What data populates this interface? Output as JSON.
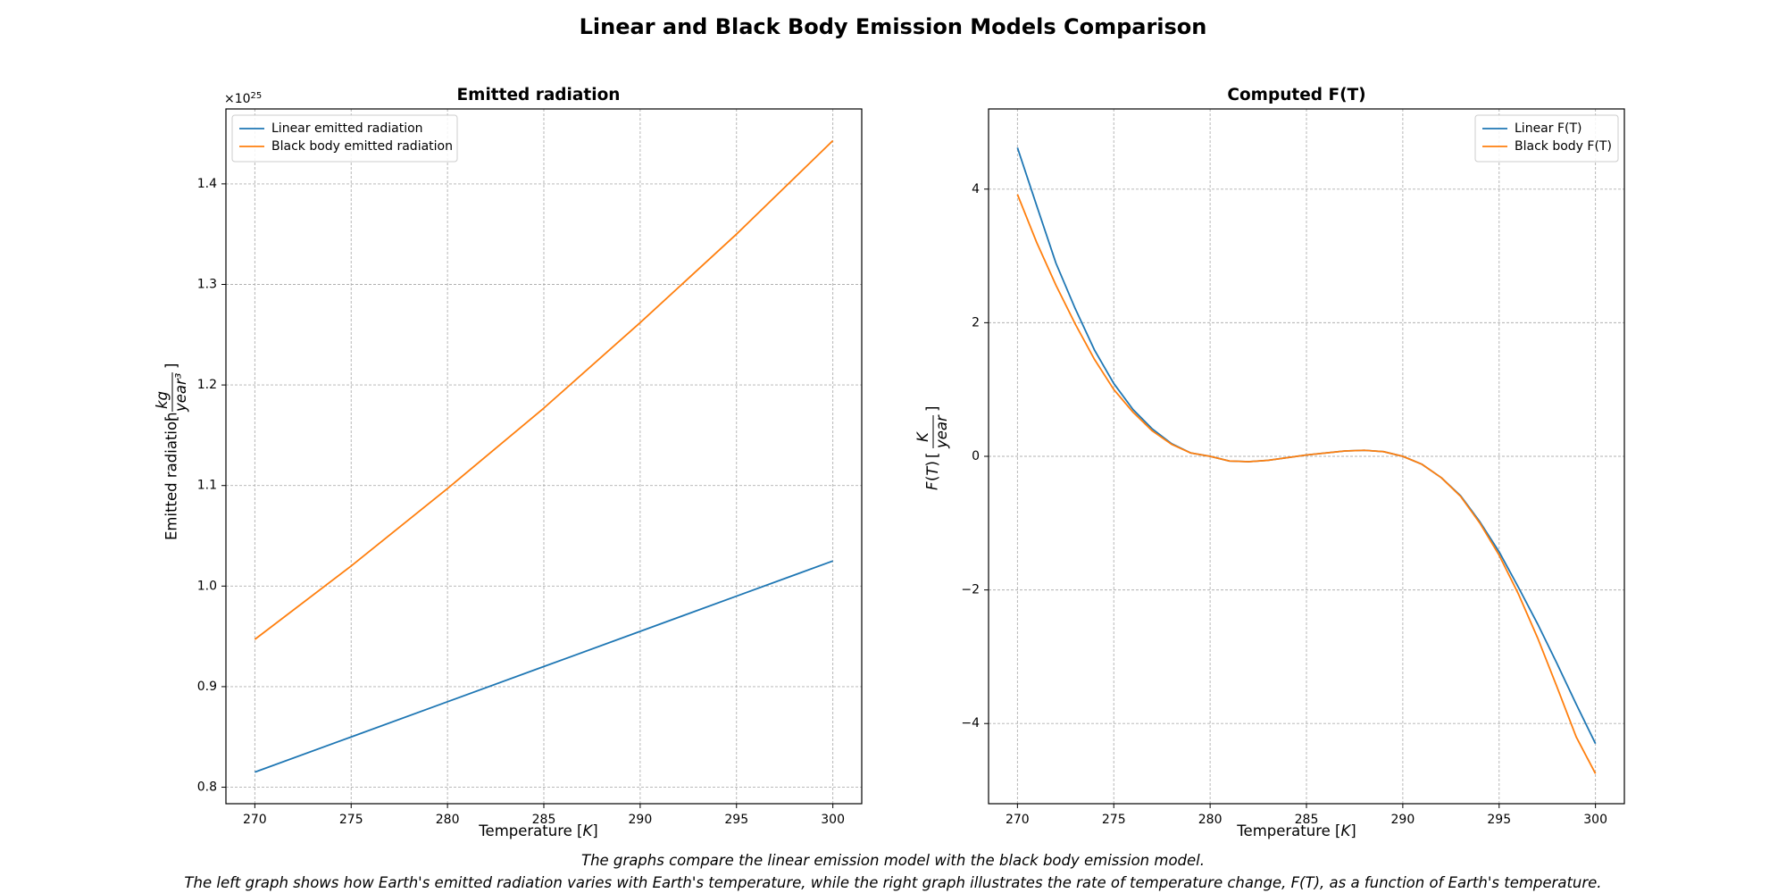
{
  "figure": {
    "title": "Linear and Black Body Emission Models Comparison",
    "caption_line1": "The graphs compare the linear emission model with the black body emission model.",
    "caption_line2": "The left graph shows how Earth's emitted radiation varies with Earth's temperature, while the right graph illustrates the rate of temperature change, F(T), as a function of Earth's temperature."
  },
  "chart_data": [
    {
      "type": "line",
      "title": "Emitted radiation",
      "xlabel": "Temperature [K]",
      "ylabel": "Emitted radiation [kg/year³]",
      "y_offset_text": "×10^25",
      "xlim": [
        268.5,
        301.5
      ],
      "ylim": [
        0.7836,
        1.4745
      ],
      "x_ticks": [
        270,
        275,
        280,
        285,
        290,
        295,
        300
      ],
      "y_ticks": [
        0.8,
        0.9,
        1.0,
        1.1,
        1.2,
        1.3,
        1.4
      ],
      "y_tick_labels": [
        "0.8",
        "0.9",
        "1.0",
        "1.1",
        "1.2",
        "1.3",
        "1.4"
      ],
      "grid": true,
      "legend": "upper left",
      "series": [
        {
          "name": "Linear emitted radiation",
          "color": "#1f77b4",
          "x": [
            270,
            275,
            280,
            285,
            290,
            295,
            300
          ],
          "y": [
            0.815,
            0.85,
            0.885,
            0.92,
            0.955,
            0.99,
            1.025
          ]
        },
        {
          "name": "Black body emitted radiation",
          "color": "#ff7f0e",
          "x": [
            270,
            275,
            280,
            285,
            290,
            295,
            300
          ],
          "y": [
            0.947,
            1.02,
            1.097,
            1.177,
            1.262,
            1.35,
            1.443
          ]
        }
      ]
    },
    {
      "type": "line",
      "title": "Computed F(T)",
      "xlabel": "Temperature [K]",
      "ylabel": "F(T) [K/year]",
      "xlim": [
        268.5,
        301.5
      ],
      "ylim": [
        -5.2,
        5.2
      ],
      "x_ticks": [
        270,
        275,
        280,
        285,
        290,
        295,
        300
      ],
      "y_ticks": [
        -4,
        -2,
        0,
        2,
        4
      ],
      "y_tick_labels": [
        "−4",
        "−2",
        "0",
        "2",
        "4"
      ],
      "grid": true,
      "legend": "upper right",
      "series": [
        {
          "name": "Linear F(T)",
          "color": "#1f77b4",
          "x": [
            270,
            271,
            272,
            273,
            274,
            275,
            276,
            277,
            278,
            279,
            280,
            281,
            282,
            283,
            284,
            285,
            286,
            287,
            288,
            289,
            290,
            291,
            292,
            293,
            294,
            295,
            296,
            297,
            298,
            299,
            300
          ],
          "y": [
            4.62,
            3.75,
            2.89,
            2.21,
            1.59,
            1.09,
            0.7,
            0.41,
            0.19,
            0.05,
            0.0,
            -0.07,
            -0.08,
            -0.06,
            -0.02,
            0.02,
            0.05,
            0.08,
            0.09,
            0.07,
            0.0,
            -0.12,
            -0.32,
            -0.59,
            -0.98,
            -1.43,
            -1.96,
            -2.51,
            -3.1,
            -3.71,
            -4.3
          ]
        },
        {
          "name": "Black body F(T)",
          "color": "#ff7f0e",
          "x": [
            270,
            271,
            272,
            273,
            274,
            275,
            276,
            277,
            278,
            279,
            280,
            281,
            282,
            283,
            284,
            285,
            286,
            287,
            288,
            289,
            290,
            291,
            292,
            293,
            294,
            295,
            296,
            297,
            298,
            299,
            300
          ],
          "y": [
            3.92,
            3.2,
            2.56,
            1.98,
            1.45,
            1.0,
            0.66,
            0.38,
            0.18,
            0.05,
            0.0,
            -0.07,
            -0.08,
            -0.06,
            -0.02,
            0.02,
            0.05,
            0.08,
            0.09,
            0.07,
            0.0,
            -0.12,
            -0.32,
            -0.6,
            -1.0,
            -1.48,
            -2.06,
            -2.72,
            -3.45,
            -4.2,
            -4.75
          ]
        }
      ]
    }
  ]
}
